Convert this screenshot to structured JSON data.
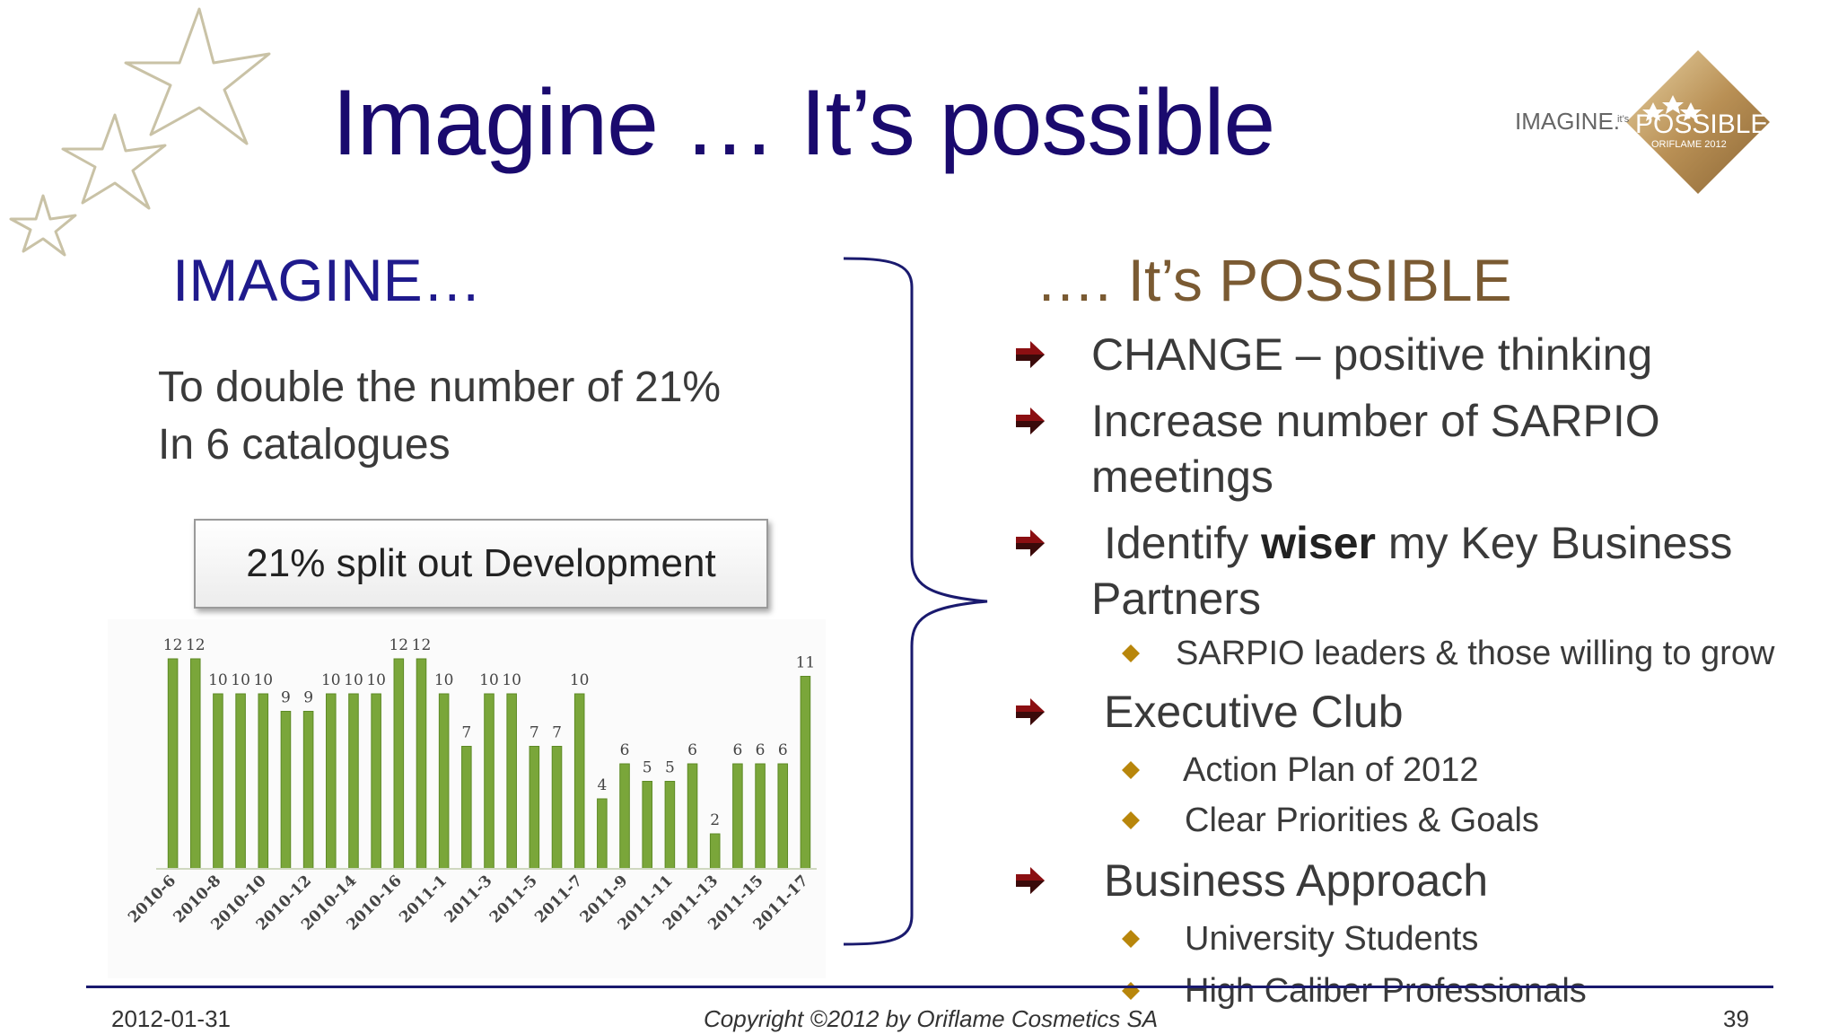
{
  "slide": {
    "title": "Imagine … It’s possible",
    "logo_text_left": "IMAGINE.",
    "logo_text_small": "it’s",
    "logo_text_main": "POSSIBLE",
    "logo_text_sub": "ORIFLAME 2012",
    "colors": {
      "title": "#1a0a6e",
      "possible": "#7a5a32",
      "bar": "#7aa63a",
      "bracket": "#1a1a6e"
    }
  },
  "left": {
    "heading": "IMAGINE…",
    "goal_line1": "To double the number of 21%",
    "goal_line2": "In 6 catalogues",
    "chart_title": "21% split out Development"
  },
  "chart_data": {
    "type": "bar",
    "title": "21% split out Development",
    "categories": [
      "2010-6",
      "",
      "2010-8",
      "",
      "2010-10",
      "",
      "2010-12",
      "",
      "2010-14",
      "",
      "2010-16",
      "",
      "2011-1",
      "",
      "2011-3",
      "",
      "2011-5",
      "",
      "2011-7",
      "",
      "2011-9",
      "",
      "2011-11",
      "",
      "2011-13",
      "",
      "2011-15",
      "",
      "2011-17"
    ],
    "values": [
      12,
      12,
      10,
      10,
      10,
      9,
      9,
      10,
      10,
      10,
      12,
      12,
      10,
      7,
      10,
      10,
      7,
      7,
      10,
      4,
      6,
      5,
      5,
      6,
      2,
      6,
      6,
      6,
      11
    ],
    "ylim": [
      0,
      12
    ],
    "grid": false,
    "legend": "none",
    "xlabel": "",
    "ylabel": ""
  },
  "right": {
    "heading": "…. It’s POSSIBLE",
    "items": [
      {
        "text": "CHANGE – positive thinking"
      },
      {
        "text": "Increase number of SARPIO meetings",
        "line1": "Increase number of SARPIO",
        "line2": "meetings"
      },
      {
        "pre": "Identify ",
        "bold": "wiser",
        "post": " my Key Business",
        "line2": "Partners"
      },
      {
        "sub": "SARPIO leaders & those willing to grow"
      },
      {
        "text": "Executive Club"
      },
      {
        "sub": "Action Plan of 2012"
      },
      {
        "sub": "Clear Priorities & Goals"
      },
      {
        "text": "Business Approach"
      },
      {
        "sub": "University Students"
      },
      {
        "sub": "High Caliber Professionals"
      }
    ]
  },
  "footer": {
    "date": "2012-01-31",
    "copyright": "Copyright ©2012 by Oriflame Cosmetics SA",
    "page": "39"
  }
}
